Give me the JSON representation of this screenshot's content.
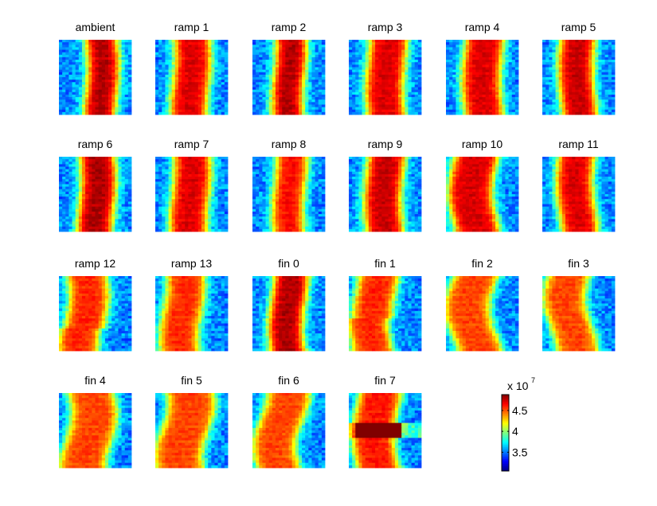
{
  "chart_data": {
    "type": "heatmap",
    "colormap": "jet",
    "panels": [
      {
        "title": "ambient",
        "band": [
          0.37,
          0.8
        ],
        "wave": 0.03,
        "phase": 0.0,
        "intensity": 1.0
      },
      {
        "title": "ramp 1",
        "band": [
          0.24,
          0.74
        ],
        "wave": 0.03,
        "phase": 0.6,
        "intensity": 0.95
      },
      {
        "title": "ramp 2",
        "band": [
          0.3,
          0.72
        ],
        "wave": 0.03,
        "phase": 1.2,
        "intensity": 1.0
      },
      {
        "title": "ramp 3",
        "band": [
          0.26,
          0.78
        ],
        "wave": 0.03,
        "phase": 1.8,
        "intensity": 0.95
      },
      {
        "title": "ramp 4",
        "band": [
          0.25,
          0.78
        ],
        "wave": 0.03,
        "phase": 2.4,
        "intensity": 0.95
      },
      {
        "title": "ramp 5",
        "band": [
          0.25,
          0.73
        ],
        "wave": 0.03,
        "phase": 3.0,
        "intensity": 0.97
      },
      {
        "title": "ramp 6",
        "band": [
          0.28,
          0.76
        ],
        "wave": 0.03,
        "phase": 0.3,
        "intensity": 1.0
      },
      {
        "title": "ramp 7",
        "band": [
          0.23,
          0.74
        ],
        "wave": 0.03,
        "phase": 0.9,
        "intensity": 0.95
      },
      {
        "title": "ramp 8",
        "band": [
          0.3,
          0.73
        ],
        "wave": 0.03,
        "phase": 1.5,
        "intensity": 0.92
      },
      {
        "title": "ramp 9",
        "band": [
          0.24,
          0.75
        ],
        "wave": 0.03,
        "phase": 2.1,
        "intensity": 0.97
      },
      {
        "title": "ramp 10",
        "band": [
          0.09,
          0.7
        ],
        "wave": 0.06,
        "phase": 2.7,
        "intensity": 0.95
      },
      {
        "title": "ramp 11",
        "band": [
          0.23,
          0.73
        ],
        "wave": 0.04,
        "phase": 3.3,
        "intensity": 0.95
      },
      {
        "title": "ramp 12",
        "band": [
          0.09,
          0.64
        ],
        "wave": 0.05,
        "phase": 0.5,
        "intensity": 0.88,
        "step_row": 21,
        "step_shift": -0.05
      },
      {
        "title": "ramp 13",
        "band": [
          0.11,
          0.64
        ],
        "wave": 0.05,
        "phase": 1.1,
        "intensity": 0.88
      },
      {
        "title": "fin 0",
        "band": [
          0.26,
          0.73
        ],
        "wave": 0.04,
        "phase": 1.7,
        "intensity": 1.0
      },
      {
        "title": "fin 1",
        "band": [
          0.1,
          0.65
        ],
        "wave": 0.05,
        "phase": 2.3,
        "intensity": 0.88,
        "step_row": 17,
        "step_shift": -0.06
      },
      {
        "title": "fin 2",
        "band": [
          0.08,
          0.7
        ],
        "wave": 0.1,
        "phase": 2.9,
        "intensity": 0.85
      },
      {
        "title": "fin 3",
        "band": [
          0.1,
          0.68
        ],
        "wave": 0.09,
        "phase": 3.5,
        "intensity": 0.85
      },
      {
        "title": "fin 4",
        "band": [
          0.09,
          0.73
        ],
        "wave": 0.08,
        "phase": 0.4,
        "intensity": 0.85
      },
      {
        "title": "fin 5",
        "band": [
          0.08,
          0.74
        ],
        "wave": 0.09,
        "phase": 1.0,
        "intensity": 0.85
      },
      {
        "title": "fin 6",
        "band": [
          0.1,
          0.7
        ],
        "wave": 0.1,
        "phase": 1.6,
        "intensity": 0.85
      },
      {
        "title": "fin 7",
        "band": [
          0.1,
          0.68
        ],
        "wave": 0.05,
        "phase": 2.2,
        "intensity": 0.9,
        "block": {
          "row_start": 0.38,
          "row_end": 0.6,
          "value": 1.0
        }
      }
    ],
    "colorbar": {
      "multiplier": "x 10",
      "exponent": "7",
      "ticks": [
        {
          "label": "4.5",
          "value": 4.5
        },
        {
          "label": "4",
          "value": 4.0
        },
        {
          "label": "3.5",
          "value": 3.5
        }
      ],
      "range": [
        3.05,
        4.88
      ]
    }
  }
}
